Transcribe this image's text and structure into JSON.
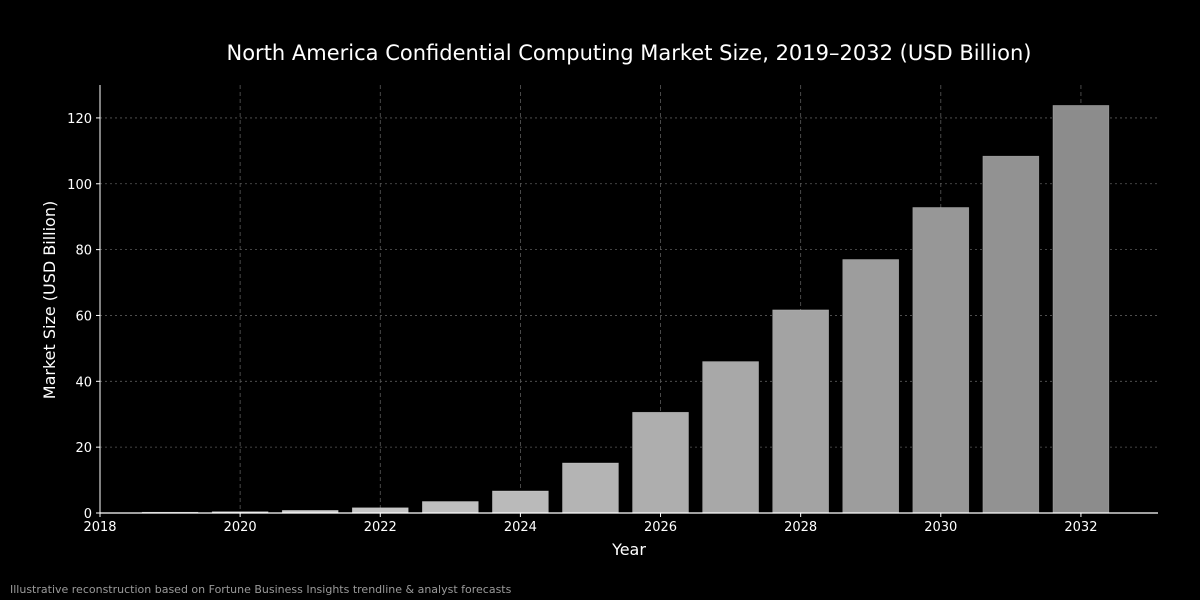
{
  "chart_data": {
    "type": "bar",
    "title": "North America Confidential Computing Market Size, 2019–2032 (USD Billion)",
    "xlabel": "Year",
    "ylabel": "Market Size (USD Billion)",
    "categories": [
      "2019",
      "2020",
      "2021",
      "2022",
      "2023",
      "2024",
      "2025",
      "2026",
      "2027",
      "2028",
      "2029",
      "2030",
      "2031",
      "2032"
    ],
    "x": [
      2019,
      2020,
      2021,
      2022,
      2023,
      2024,
      2025,
      2026,
      2027,
      2028,
      2029,
      2030,
      2031,
      2032
    ],
    "values": [
      0.2,
      0.4,
      0.8,
      1.6,
      3.5,
      6.7,
      15.2,
      30.6,
      46.0,
      61.7,
      77.0,
      92.8,
      108.4,
      123.8
    ],
    "xlim": [
      2018,
      2033.1
    ],
    "ylim": [
      0,
      130
    ],
    "xticks": [
      2018,
      2020,
      2022,
      2024,
      2026,
      2028,
      2030,
      2032
    ],
    "yticks": [
      0,
      20,
      40,
      60,
      80,
      100,
      120
    ],
    "grid": true,
    "legend": "none"
  },
  "colors": {
    "background": "#000000",
    "bar_light": "#d6d6d6",
    "bar_dark": "#8c8c8c",
    "axis": "#ffffff",
    "grid": "#5a5a5a",
    "text": "#ffffff"
  },
  "footnote": "Illustrative reconstruction based on Fortune Business Insights trendline & analyst forecasts"
}
